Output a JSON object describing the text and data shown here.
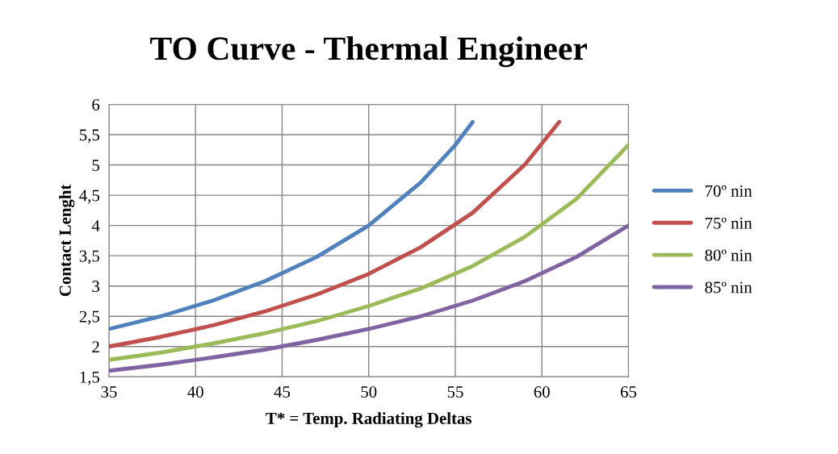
{
  "chart_data": {
    "type": "line",
    "title": "TO Curve - Thermal Engineer",
    "xlabel": "T* = Temp. Radiating Deltas",
    "ylabel": "Contact Lenght",
    "xlim": [
      35,
      65
    ],
    "xticks": [
      35,
      40,
      45,
      50,
      55,
      60,
      65
    ],
    "ylim": [
      1.5,
      6
    ],
    "yticks": [
      {
        "value": 1.5,
        "label": "1,5"
      },
      2,
      {
        "value": 2.5,
        "label": "2,5"
      },
      3,
      {
        "value": 3.5,
        "label": "3,5"
      },
      4,
      {
        "value": 4.5,
        "label": "4,5"
      },
      5,
      {
        "value": 5.5,
        "label": "5,5"
      },
      6
    ],
    "grid": true,
    "legend": "right",
    "marker": "none",
    "line_style": "solid",
    "series": [
      {
        "name": "70º nin",
        "color": "#4f81bd",
        "x": [
          35,
          38,
          41,
          44,
          47,
          50,
          53,
          55,
          56
        ],
        "values": [
          2.29,
          2.5,
          2.76,
          3.08,
          3.48,
          4.0,
          4.71,
          5.33,
          5.71
        ]
      },
      {
        "name": "75º nin",
        "color": "#c0504d",
        "x": [
          35,
          38,
          41,
          44,
          47,
          50,
          53,
          56,
          59,
          61
        ],
        "values": [
          2.0,
          2.16,
          2.35,
          2.58,
          2.86,
          3.2,
          3.64,
          4.21,
          5.0,
          5.71
        ]
      },
      {
        "name": "80º nin",
        "color": "#9bbb59",
        "x": [
          35,
          38,
          41,
          44,
          47,
          50,
          53,
          56,
          59,
          62,
          65
        ],
        "values": [
          1.78,
          1.9,
          2.05,
          2.22,
          2.42,
          2.67,
          2.96,
          3.33,
          3.81,
          4.44,
          5.33
        ]
      },
      {
        "name": "85º nin",
        "color": "#8064a2",
        "x": [
          35,
          38,
          41,
          44,
          47,
          50,
          53,
          56,
          59,
          62,
          65
        ],
        "values": [
          1.6,
          1.7,
          1.82,
          1.95,
          2.11,
          2.29,
          2.5,
          2.76,
          3.08,
          3.48,
          4.0
        ]
      }
    ]
  }
}
